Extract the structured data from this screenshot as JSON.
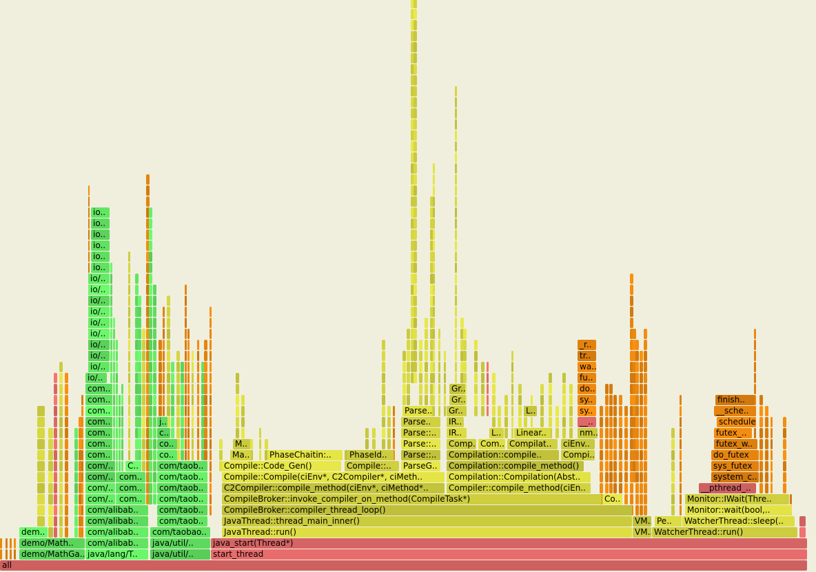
{
  "chart_data": {
    "type": "flamegraph",
    "title": "",
    "colors": {
      "background": "#f0efde",
      "red": "#ee6f6f",
      "green": "#66ee66",
      "yellow": "#dddd44",
      "orange": "#ee8a10"
    },
    "total_width": 1172,
    "frames": [
      {
        "label": "all",
        "x": 0,
        "w": 1172,
        "depth": 0,
        "color": "red"
      },
      {
        "label": "demo/MathGa..",
        "x": 28,
        "w": 96,
        "depth": 1,
        "color": "green"
      },
      {
        "label": "java/lang/T..",
        "x": 124,
        "w": 92,
        "depth": 1,
        "color": "green"
      },
      {
        "label": "java/util/..",
        "x": 218,
        "w": 88,
        "depth": 1,
        "color": "green"
      },
      {
        "label": "start_thread",
        "x": 306,
        "w": 866,
        "depth": 1,
        "color": "red"
      },
      {
        "label": "demo/Math..",
        "x": 28,
        "w": 96,
        "depth": 2,
        "color": "green"
      },
      {
        "label": "com/alibab..",
        "x": 124,
        "w": 92,
        "depth": 2,
        "color": "green"
      },
      {
        "label": "java/util/..",
        "x": 218,
        "w": 88,
        "depth": 2,
        "color": "green"
      },
      {
        "label": "java_start(Thread*)",
        "x": 306,
        "w": 866,
        "depth": 2,
        "color": "red"
      },
      {
        "label": "dem..",
        "x": 28,
        "w": 42,
        "depth": 3,
        "color": "green"
      },
      {
        "label": "com/alibab..",
        "x": 124,
        "w": 92,
        "depth": 3,
        "color": "green"
      },
      {
        "label": "com/taobao..",
        "x": 218,
        "w": 88,
        "depth": 3,
        "color": "green"
      },
      {
        "label": "JavaThread::run()",
        "x": 322,
        "w": 596,
        "depth": 3,
        "color": "yellow"
      },
      {
        "label": "VM..",
        "x": 918,
        "w": 28,
        "depth": 3,
        "color": "yellow"
      },
      {
        "label": "WatcherThread::run()",
        "x": 946,
        "w": 212,
        "depth": 3,
        "color": "yellow"
      },
      {
        "label": "com/alibab..",
        "x": 124,
        "w": 92,
        "depth": 4,
        "color": "green"
      },
      {
        "label": "com/taob..",
        "x": 228,
        "w": 74,
        "depth": 4,
        "color": "green"
      },
      {
        "label": "JavaThread::thread_main_inner()",
        "x": 322,
        "w": 596,
        "depth": 4,
        "color": "yellow"
      },
      {
        "label": "VM..",
        "x": 918,
        "w": 28,
        "depth": 4,
        "color": "yellow"
      },
      {
        "label": "Pe..",
        "x": 950,
        "w": 40,
        "depth": 4,
        "color": "yellow"
      },
      {
        "label": "WatcherThread::sleep(..",
        "x": 990,
        "w": 164,
        "depth": 4,
        "color": "yellow"
      },
      {
        "label": "com/alibab..",
        "x": 124,
        "w": 92,
        "depth": 5,
        "color": "green"
      },
      {
        "label": "com/taob..",
        "x": 228,
        "w": 74,
        "depth": 5,
        "color": "green"
      },
      {
        "label": "CompileBroker::compiler_thread_loop()",
        "x": 322,
        "w": 596,
        "depth": 5,
        "color": "yellow"
      },
      {
        "label": "Monitor::wait(bool,..",
        "x": 994,
        "w": 156,
        "depth": 5,
        "color": "yellow"
      },
      {
        "label": "com/..",
        "x": 124,
        "w": 44,
        "depth": 6,
        "color": "green"
      },
      {
        "label": "com..",
        "x": 170,
        "w": 42,
        "depth": 6,
        "color": "green"
      },
      {
        "label": "com/taob..",
        "x": 228,
        "w": 74,
        "depth": 6,
        "color": "green"
      },
      {
        "label": "CompileBroker::invoke_compiler_on_method(CompileTask*)",
        "x": 322,
        "w": 552,
        "depth": 6,
        "color": "yellow"
      },
      {
        "label": "Co..",
        "x": 874,
        "w": 30,
        "depth": 6,
        "color": "yellow"
      },
      {
        "label": "Monitor::IWait(Thre..",
        "x": 994,
        "w": 152,
        "depth": 6,
        "color": "yellow"
      },
      {
        "label": "com/..",
        "x": 124,
        "w": 44,
        "depth": 7,
        "color": "green"
      },
      {
        "label": "com..",
        "x": 170,
        "w": 42,
        "depth": 7,
        "color": "green"
      },
      {
        "label": "com/taob..",
        "x": 228,
        "w": 74,
        "depth": 7,
        "color": "green"
      },
      {
        "label": "C2Compiler::compile_method(ciEnv*, ciMethod*..",
        "x": 322,
        "w": 324,
        "depth": 7,
        "color": "yellow"
      },
      {
        "label": "Compiler::compile_method(ciEn..",
        "x": 648,
        "w": 210,
        "depth": 7,
        "color": "yellow"
      },
      {
        "label": "__pthread_..",
        "x": 1014,
        "w": 84,
        "depth": 7,
        "color": "red"
      },
      {
        "label": "com/..",
        "x": 124,
        "w": 44,
        "depth": 8,
        "color": "green"
      },
      {
        "label": "com..",
        "x": 170,
        "w": 42,
        "depth": 8,
        "color": "green"
      },
      {
        "label": "com/taob..",
        "x": 228,
        "w": 74,
        "depth": 8,
        "color": "green"
      },
      {
        "label": "Compile::Compile(ciEnv*, C2Compiler*, ciMeth..",
        "x": 322,
        "w": 324,
        "depth": 8,
        "color": "yellow"
      },
      {
        "label": "Compilation::Compilation(Abst..",
        "x": 648,
        "w": 210,
        "depth": 8,
        "color": "yellow"
      },
      {
        "label": "system_c..",
        "x": 1032,
        "w": 70,
        "depth": 8,
        "color": "orange"
      },
      {
        "label": "com/..",
        "x": 124,
        "w": 44,
        "depth": 9,
        "color": "green"
      },
      {
        "label": "C..",
        "x": 182,
        "w": 22,
        "depth": 9,
        "color": "green"
      },
      {
        "label": "com/taob..",
        "x": 228,
        "w": 74,
        "depth": 9,
        "color": "green"
      },
      {
        "label": "Compile::Code_Gen()",
        "x": 322,
        "w": 174,
        "depth": 9,
        "color": "yellow"
      },
      {
        "label": "Compile::..",
        "x": 500,
        "w": 80,
        "depth": 9,
        "color": "yellow"
      },
      {
        "label": "ParseG..",
        "x": 582,
        "w": 58,
        "depth": 9,
        "color": "yellow"
      },
      {
        "label": "Compilation::compile_method()",
        "x": 648,
        "w": 200,
        "depth": 9,
        "color": "yellow"
      },
      {
        "label": "sys_futex",
        "x": 1032,
        "w": 70,
        "depth": 9,
        "color": "orange"
      },
      {
        "label": "com..",
        "x": 124,
        "w": 40,
        "depth": 10,
        "color": "green"
      },
      {
        "label": "co..",
        "x": 228,
        "w": 30,
        "depth": 10,
        "color": "green"
      },
      {
        "label": "Ma..",
        "x": 334,
        "w": 32,
        "depth": 10,
        "color": "yellow"
      },
      {
        "label": "PhaseChaitin:..",
        "x": 388,
        "w": 110,
        "depth": 10,
        "color": "yellow"
      },
      {
        "label": "PhaseId..",
        "x": 504,
        "w": 68,
        "depth": 10,
        "color": "yellow"
      },
      {
        "label": "Parse::..",
        "x": 582,
        "w": 58,
        "depth": 10,
        "color": "yellow"
      },
      {
        "label": "Compilation::compile..",
        "x": 648,
        "w": 164,
        "depth": 10,
        "color": "yellow"
      },
      {
        "label": "Compi..",
        "x": 814,
        "w": 50,
        "depth": 10,
        "color": "yellow"
      },
      {
        "label": "do_futex",
        "x": 1032,
        "w": 70,
        "depth": 10,
        "color": "orange"
      },
      {
        "label": "com..",
        "x": 124,
        "w": 40,
        "depth": 11,
        "color": "green"
      },
      {
        "label": "co..",
        "x": 228,
        "w": 30,
        "depth": 11,
        "color": "green"
      },
      {
        "label": "M..",
        "x": 338,
        "w": 26,
        "depth": 11,
        "color": "yellow"
      },
      {
        "label": "Parse::..",
        "x": 582,
        "w": 58,
        "depth": 11,
        "color": "yellow"
      },
      {
        "label": "Comp..",
        "x": 648,
        "w": 44,
        "depth": 11,
        "color": "yellow"
      },
      {
        "label": "Com..",
        "x": 694,
        "w": 40,
        "depth": 11,
        "color": "yellow"
      },
      {
        "label": "Compilat..",
        "x": 736,
        "w": 74,
        "depth": 11,
        "color": "yellow"
      },
      {
        "label": "ciEnv..",
        "x": 814,
        "w": 50,
        "depth": 11,
        "color": "yellow"
      },
      {
        "label": "futex_w..",
        "x": 1036,
        "w": 64,
        "depth": 11,
        "color": "orange"
      },
      {
        "label": "com..",
        "x": 124,
        "w": 40,
        "depth": 12,
        "color": "green"
      },
      {
        "label": "c..",
        "x": 228,
        "w": 20,
        "depth": 12,
        "color": "green"
      },
      {
        "label": "Parse::..",
        "x": 582,
        "w": 58,
        "depth": 12,
        "color": "yellow"
      },
      {
        "label": "IR..",
        "x": 648,
        "w": 30,
        "depth": 12,
        "color": "yellow"
      },
      {
        "label": "L..",
        "x": 710,
        "w": 22,
        "depth": 12,
        "color": "yellow"
      },
      {
        "label": "Linear..",
        "x": 746,
        "w": 54,
        "depth": 12,
        "color": "yellow"
      },
      {
        "label": "nm..",
        "x": 838,
        "w": 30,
        "depth": 12,
        "color": "yellow"
      },
      {
        "label": "futex_..",
        "x": 1036,
        "w": 56,
        "depth": 12,
        "color": "orange"
      },
      {
        "label": "com..",
        "x": 124,
        "w": 40,
        "depth": 13,
        "color": "green"
      },
      {
        "label": "j..",
        "x": 228,
        "w": 16,
        "depth": 13,
        "color": "green"
      },
      {
        "label": "Parse..",
        "x": 582,
        "w": 58,
        "depth": 13,
        "color": "yellow"
      },
      {
        "label": "IR..",
        "x": 648,
        "w": 26,
        "depth": 13,
        "color": "yellow"
      },
      {
        "label": "__..",
        "x": 838,
        "w": 28,
        "depth": 13,
        "color": "red"
      },
      {
        "label": "schedule",
        "x": 1040,
        "w": 58,
        "depth": 13,
        "color": "orange"
      },
      {
        "label": "com..",
        "x": 124,
        "w": 40,
        "depth": 14,
        "color": "green"
      },
      {
        "label": "Parse..",
        "x": 584,
        "w": 44,
        "depth": 14,
        "color": "yellow"
      },
      {
        "label": "Gr..",
        "x": 648,
        "w": 26,
        "depth": 14,
        "color": "yellow"
      },
      {
        "label": "L..",
        "x": 760,
        "w": 20,
        "depth": 14,
        "color": "yellow"
      },
      {
        "label": "sy..",
        "x": 838,
        "w": 28,
        "depth": 14,
        "color": "orange"
      },
      {
        "label": "__sche..",
        "x": 1036,
        "w": 62,
        "depth": 14,
        "color": "orange"
      },
      {
        "label": "com..",
        "x": 124,
        "w": 40,
        "depth": 15,
        "color": "green"
      },
      {
        "label": "Gr..",
        "x": 652,
        "w": 24,
        "depth": 15,
        "color": "yellow"
      },
      {
        "label": "sy..",
        "x": 838,
        "w": 28,
        "depth": 15,
        "color": "orange"
      },
      {
        "label": "finish..",
        "x": 1038,
        "w": 58,
        "depth": 15,
        "color": "orange"
      },
      {
        "label": "com..",
        "x": 124,
        "w": 40,
        "depth": 16,
        "color": "green"
      },
      {
        "label": "Gr..",
        "x": 652,
        "w": 24,
        "depth": 16,
        "color": "yellow"
      },
      {
        "label": "do..",
        "x": 838,
        "w": 28,
        "depth": 16,
        "color": "orange"
      },
      {
        "label": "io/..",
        "x": 124,
        "w": 32,
        "depth": 17,
        "color": "green"
      },
      {
        "label": "fu..",
        "x": 838,
        "w": 28,
        "depth": 17,
        "color": "orange"
      },
      {
        "label": "io/..",
        "x": 128,
        "w": 32,
        "depth": 18,
        "color": "green"
      },
      {
        "label": "wa..",
        "x": 838,
        "w": 28,
        "depth": 18,
        "color": "orange"
      },
      {
        "label": "io/..",
        "x": 128,
        "w": 32,
        "depth": 19,
        "color": "green"
      },
      {
        "label": "tr..",
        "x": 838,
        "w": 28,
        "depth": 19,
        "color": "orange"
      },
      {
        "label": "io/..",
        "x": 128,
        "w": 32,
        "depth": 20,
        "color": "green"
      },
      {
        "label": "_r..",
        "x": 838,
        "w": 28,
        "depth": 20,
        "color": "orange"
      },
      {
        "label": "io/..",
        "x": 128,
        "w": 32,
        "depth": 21,
        "color": "green"
      },
      {
        "label": "io/..",
        "x": 128,
        "w": 32,
        "depth": 22,
        "color": "green"
      },
      {
        "label": "io/..",
        "x": 128,
        "w": 32,
        "depth": 23,
        "color": "green"
      },
      {
        "label": "io/..",
        "x": 128,
        "w": 32,
        "depth": 24,
        "color": "green"
      },
      {
        "label": "io/..",
        "x": 128,
        "w": 32,
        "depth": 25,
        "color": "green"
      },
      {
        "label": "io/..",
        "x": 128,
        "w": 32,
        "depth": 26,
        "color": "green"
      },
      {
        "label": "io..",
        "x": 132,
        "w": 28,
        "depth": 27,
        "color": "green"
      },
      {
        "label": "io..",
        "x": 132,
        "w": 28,
        "depth": 28,
        "color": "green"
      },
      {
        "label": "io..",
        "x": 132,
        "w": 28,
        "depth": 29,
        "color": "green"
      },
      {
        "label": "io..",
        "x": 132,
        "w": 28,
        "depth": 30,
        "color": "green"
      },
      {
        "label": "io..",
        "x": 132,
        "w": 28,
        "depth": 31,
        "color": "green"
      },
      {
        "label": "io..",
        "x": 132,
        "w": 28,
        "depth": 32,
        "color": "green"
      }
    ]
  }
}
